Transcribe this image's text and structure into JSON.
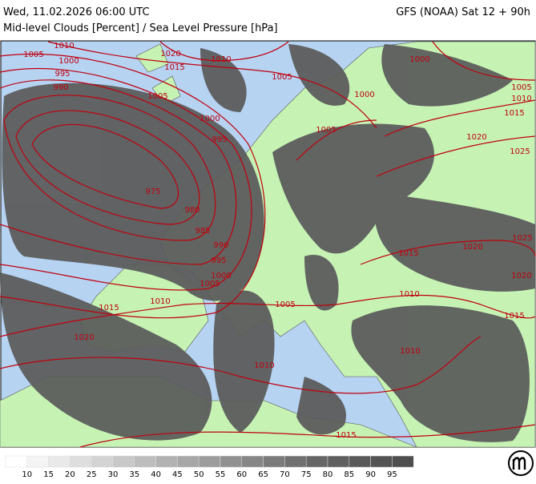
{
  "header": {
    "datetime": "Wed, 11.02.2026 06:00 UTC",
    "model": "GFS (NOAA) Sat 12 + 90h",
    "subtitle": "Mid-level Clouds [Percent] / Sea Level Pressure [hPa]"
  },
  "isobar_labels": [
    1010,
    1005,
    1000,
    995,
    990,
    1020,
    1015,
    1010,
    1005,
    1005,
    1000,
    1000,
    1005,
    1005,
    1010,
    1015,
    1020,
    1025,
    1000,
    995,
    975,
    980,
    985,
    990,
    995,
    1000,
    1005,
    1015,
    1010,
    1005,
    1020,
    1010,
    1015,
    1020,
    1025,
    1020,
    1010,
    1015,
    1010,
    1015
  ],
  "legend": {
    "labels": [
      10,
      15,
      20,
      25,
      30,
      35,
      40,
      45,
      50,
      55,
      60,
      65,
      70,
      75,
      80,
      85,
      90,
      95
    ],
    "colors": [
      "#ffffff",
      "#f4f4f4",
      "#e9e9e9",
      "#dedede",
      "#d3d3d3",
      "#c8c8c8",
      "#bdbdbd",
      "#b2b2b2",
      "#a7a7a7",
      "#9c9c9c",
      "#919191",
      "#868686",
      "#7b7b7b",
      "#707070",
      "#666666",
      "#5f5f5f",
      "#595959",
      "#535353",
      "#4e4e4e"
    ]
  }
}
